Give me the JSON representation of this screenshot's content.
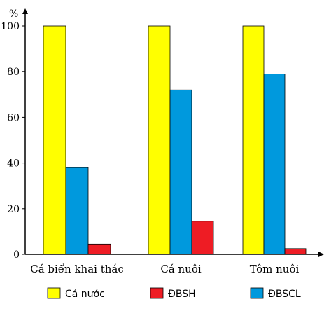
{
  "chart_data": {
    "type": "bar",
    "ylabel": "%",
    "ylim": [
      0,
      110
    ],
    "yticks": [
      0,
      20,
      40,
      60,
      80,
      100
    ],
    "categories": [
      "Cá biển khai thác",
      "Cá nuôi",
      "Tôm nuôi"
    ],
    "series": [
      {
        "name": "Cả nước",
        "color": "#ffff00",
        "values": [
          100,
          100,
          100
        ]
      },
      {
        "name": "ĐBSCL",
        "color": "#0099dd",
        "values": [
          38,
          72,
          79
        ]
      },
      {
        "name": "ĐBSH",
        "color": "#ee1c24",
        "values": [
          4.5,
          14.5,
          2.5
        ]
      }
    ],
    "legend": {
      "placement": "bottom",
      "order": [
        "Cả nước",
        "ĐBSH",
        "ĐBSCL"
      ]
    },
    "grid": false
  }
}
